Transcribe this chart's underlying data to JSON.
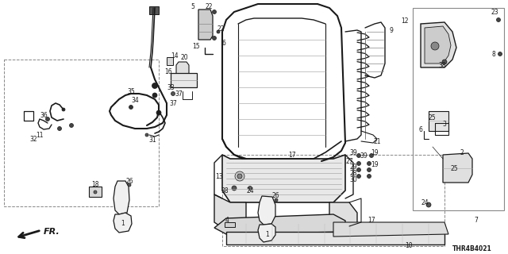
{
  "diagram_code": "THR4B4021",
  "bg_color": "#ffffff",
  "line_color": "#1a1a1a",
  "fig_width": 6.4,
  "fig_height": 3.2,
  "dpi": 100,
  "font_size": 5.5,
  "font_size_code": 5.5
}
